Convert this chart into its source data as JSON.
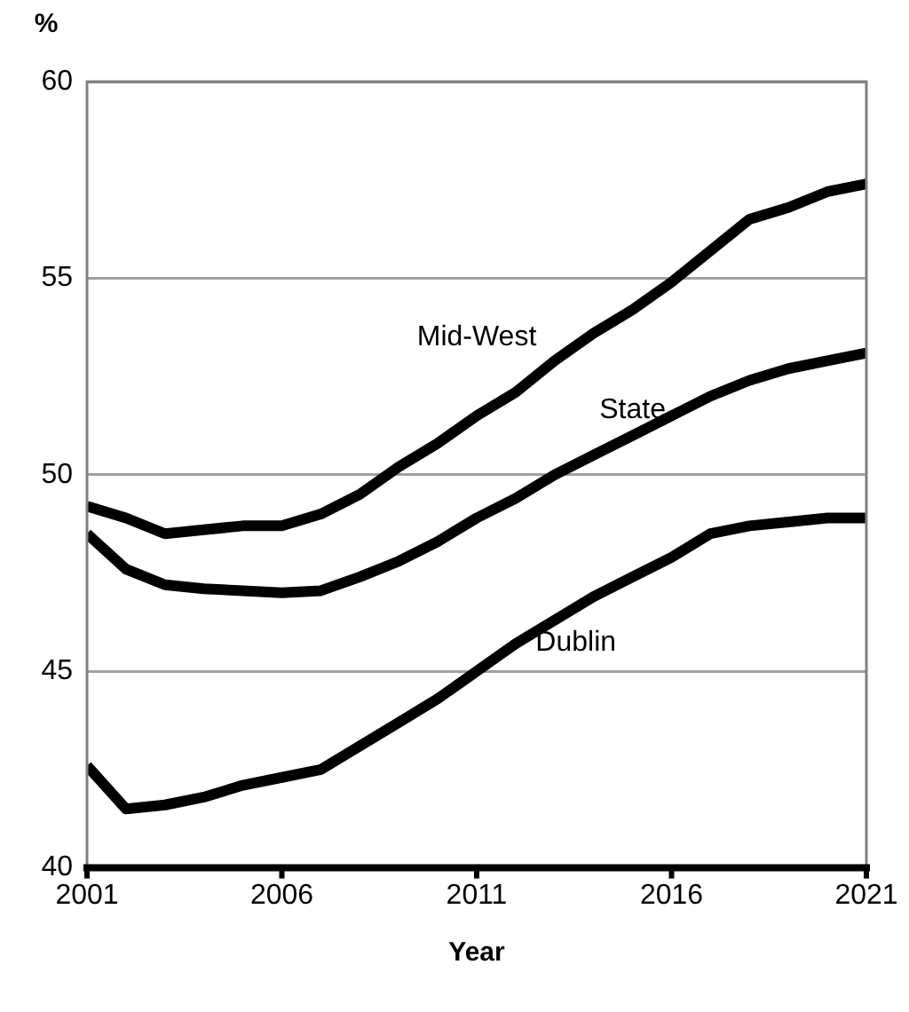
{
  "chart_data": {
    "type": "line",
    "xlabel": "Year",
    "ylabel": "%",
    "x": [
      2001,
      2002,
      2003,
      2004,
      2005,
      2006,
      2007,
      2008,
      2009,
      2010,
      2011,
      2012,
      2013,
      2014,
      2015,
      2016,
      2017,
      2018,
      2019,
      2020,
      2021
    ],
    "series": [
      {
        "name": "Mid-West",
        "color": "#000000",
        "values": [
          49.2,
          48.9,
          48.5,
          48.6,
          48.7,
          48.7,
          49.0,
          49.5,
          50.2,
          50.8,
          51.5,
          52.1,
          52.9,
          53.6,
          54.2,
          54.9,
          55.7,
          56.5,
          56.8,
          57.2,
          57.4
        ]
      },
      {
        "name": "State",
        "color": "#000000",
        "values": [
          48.5,
          47.6,
          47.2,
          47.1,
          47.05,
          47.0,
          47.05,
          47.4,
          47.8,
          48.3,
          48.9,
          49.4,
          50.0,
          50.5,
          51.0,
          51.5,
          52.0,
          52.4,
          52.7,
          52.9,
          53.1
        ]
      },
      {
        "name": "Dublin",
        "color": "#000000",
        "values": [
          42.6,
          41.5,
          41.6,
          41.8,
          42.1,
          42.3,
          42.5,
          43.1,
          43.7,
          44.3,
          45.0,
          45.7,
          46.3,
          46.9,
          47.4,
          47.9,
          48.5,
          48.7,
          48.8,
          48.9,
          48.9
        ]
      }
    ],
    "xlim": [
      2001,
      2021
    ],
    "xticks": [
      2001,
      2006,
      2011,
      2016,
      2021
    ],
    "ylim": [
      40,
      60
    ],
    "yticks": [
      40,
      45,
      50,
      55,
      60
    ],
    "grid": "y",
    "legend": false,
    "marker": "none",
    "line_style": "solid"
  }
}
